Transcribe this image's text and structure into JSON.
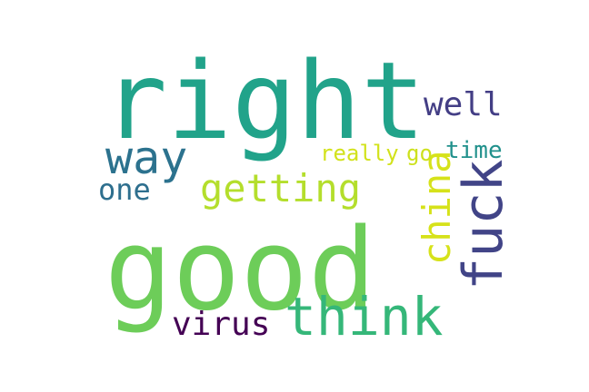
{
  "word_cloud": {
    "words": [
      {
        "text": "right",
        "color": "#21a38a",
        "orientation": "horizontal"
      },
      {
        "text": "good",
        "color": "#6dcd59",
        "orientation": "horizontal"
      },
      {
        "text": "think",
        "color": "#35b779",
        "orientation": "horizontal"
      },
      {
        "text": "fuck",
        "color": "#414487",
        "orientation": "vertical"
      },
      {
        "text": "way",
        "color": "#2c728e",
        "orientation": "horizontal"
      },
      {
        "text": "getting",
        "color": "#b4de2c",
        "orientation": "horizontal"
      },
      {
        "text": "china",
        "color": "#d6e21a",
        "orientation": "vertical"
      },
      {
        "text": "well",
        "color": "#433e85",
        "orientation": "horizontal"
      },
      {
        "text": "virus",
        "color": "#440154",
        "orientation": "horizontal"
      },
      {
        "text": "one",
        "color": "#2e6f8e",
        "orientation": "horizontal"
      },
      {
        "text": "really",
        "color": "#d2e21b",
        "orientation": "horizontal"
      },
      {
        "text": "time",
        "color": "#21918c",
        "orientation": "horizontal"
      },
      {
        "text": "go",
        "color": "#cde11d",
        "orientation": "horizontal"
      }
    ]
  }
}
